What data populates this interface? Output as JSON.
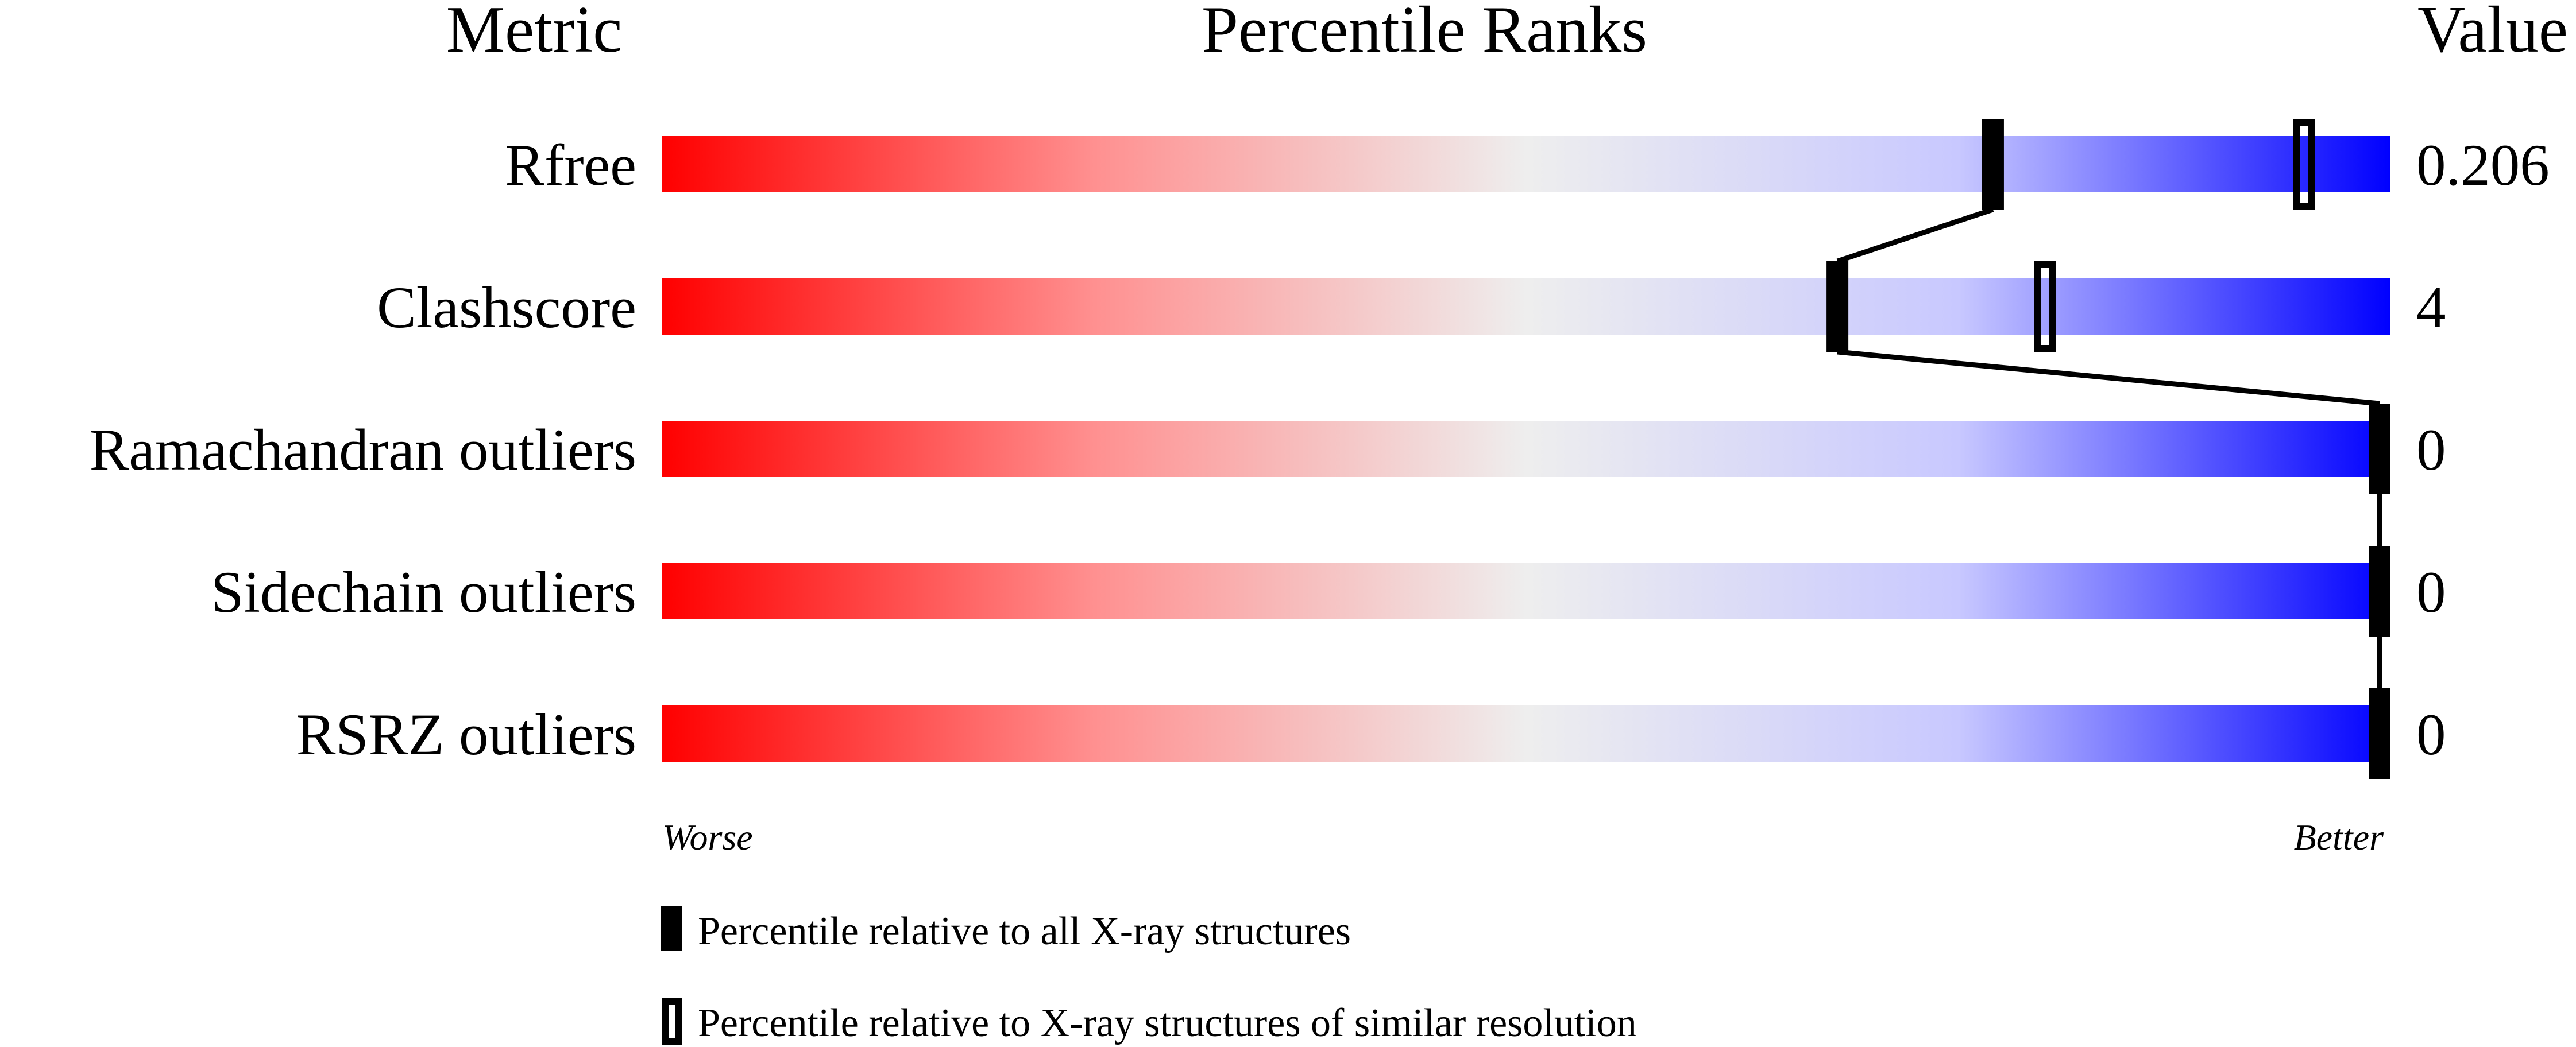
{
  "chart_data": {
    "type": "bar",
    "headers": {
      "metric": "Metric",
      "title": "Percentile Ranks",
      "value": "Value"
    },
    "xlim": [
      0,
      100
    ],
    "metrics": [
      {
        "name": "Rfree",
        "value": "0.206",
        "percentile_all": 77,
        "percentile_similar": 95
      },
      {
        "name": "Clashscore",
        "value": "4",
        "percentile_all": 68,
        "percentile_similar": 80
      },
      {
        "name": "Ramachandran outliers",
        "value": "0",
        "percentile_all": 100,
        "percentile_similar": null
      },
      {
        "name": "Sidechain outliers",
        "value": "0",
        "percentile_all": 100,
        "percentile_similar": null
      },
      {
        "name": "RSRZ outliers",
        "value": "0",
        "percentile_all": 100,
        "percentile_similar": null
      }
    ],
    "axis_labels": {
      "left": "Worse",
      "right": "Better"
    },
    "legend": [
      {
        "marker": "filled",
        "label": "Percentile relative to all X-ray structures"
      },
      {
        "marker": "open",
        "label": "Percentile relative to X-ray structures of similar resolution"
      }
    ],
    "colors": {
      "worse": "#ff0000",
      "middle": "#eeeeee",
      "better": "#0000ff",
      "marker": "#000000"
    }
  }
}
